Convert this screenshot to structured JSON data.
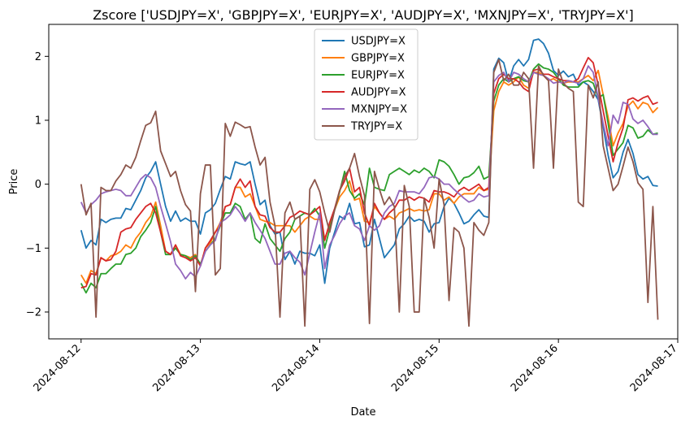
{
  "chart_data": {
    "type": "line",
    "title": "Zscore ['USDJPY=X', 'GBPJPY=X', 'EURJPY=X', 'AUDJPY=X', 'MXNJPY=X', 'TRYJPY=X']",
    "xlabel": "Date",
    "ylabel": "Price",
    "xlim": [
      "2024-08-11T17:30",
      "2024-08-17T00:00"
    ],
    "ylim": [
      -2.42,
      2.5
    ],
    "yticks": [
      -2,
      -1,
      0,
      1,
      2
    ],
    "xticks": [
      "2024-08-12",
      "2024-08-13",
      "2024-08-14",
      "2024-08-15",
      "2024-08-16",
      "2024-08-17"
    ],
    "x_start": "2024-08-12T00:00",
    "x_step_hours": 1,
    "legend_position": "upper center",
    "grid": false,
    "series": [
      {
        "name": "USDJPY=X",
        "color": "#1f77b4",
        "values": [
          -0.72,
          -1.0,
          -0.88,
          -0.95,
          -0.55,
          -0.6,
          -0.55,
          -0.53,
          -0.53,
          -0.38,
          -0.4,
          -0.25,
          -0.1,
          0.1,
          0.2,
          0.35,
          0.0,
          -0.35,
          -0.58,
          -0.42,
          -0.58,
          -0.53,
          -0.58,
          -0.58,
          -0.78,
          -0.45,
          -0.4,
          -0.3,
          -0.08,
          0.12,
          0.08,
          0.35,
          0.32,
          0.3,
          0.35,
          0.0,
          -0.32,
          -0.25,
          -0.65,
          -0.78,
          -0.75,
          -1.18,
          -1.05,
          -1.25,
          -1.05,
          -1.08,
          -1.08,
          -1.12,
          -0.95,
          -1.55,
          -1.0,
          -0.75,
          -0.5,
          -0.55,
          -0.3,
          -0.62,
          -0.6,
          -0.98,
          -0.95,
          -0.55,
          -0.85,
          -1.15,
          -1.05,
          -0.95,
          -0.7,
          -0.62,
          -0.5,
          -0.58,
          -0.55,
          -0.58,
          -0.75,
          -0.62,
          -0.6,
          -0.35,
          -0.22,
          -0.3,
          -0.45,
          -0.62,
          -0.58,
          -0.48,
          -0.4,
          -0.5,
          -0.52,
          1.8,
          1.97,
          1.9,
          1.6,
          1.85,
          1.95,
          1.85,
          1.95,
          2.25,
          2.27,
          2.2,
          2.05,
          1.78,
          1.7,
          1.77,
          1.68,
          1.72,
          1.55,
          1.6,
          1.55,
          1.45,
          1.32,
          0.9,
          0.45,
          0.1,
          0.2,
          0.5,
          0.7,
          0.48,
          0.15,
          0.08,
          0.12,
          -0.02,
          -0.03
        ]
      },
      {
        "name": "GBPJPY=X",
        "color": "#ff7f0e",
        "values": [
          -1.42,
          -1.55,
          -1.35,
          -1.4,
          -1.15,
          -1.2,
          -1.12,
          -1.1,
          -1.05,
          -0.95,
          -1.0,
          -0.85,
          -0.75,
          -0.6,
          -0.5,
          -0.28,
          -0.65,
          -1.05,
          -1.1,
          -0.95,
          -1.1,
          -1.12,
          -1.15,
          -1.1,
          -1.28,
          -1.0,
          -0.92,
          -0.75,
          -0.6,
          -0.35,
          -0.32,
          -0.05,
          -0.05,
          -0.2,
          -0.15,
          -0.35,
          -0.55,
          -0.58,
          -0.6,
          -0.65,
          -0.65,
          -0.65,
          -0.65,
          -0.75,
          -0.65,
          -0.55,
          -0.5,
          -0.55,
          -0.55,
          -0.85,
          -0.65,
          -0.4,
          -0.2,
          -0.1,
          0.05,
          -0.25,
          -0.22,
          -0.58,
          -0.6,
          -0.35,
          -0.45,
          -0.55,
          -0.5,
          -0.55,
          -0.45,
          -0.42,
          -0.38,
          -0.42,
          -0.4,
          -0.42,
          -0.4,
          -0.15,
          -0.15,
          -0.25,
          -0.2,
          -0.3,
          -0.2,
          -0.15,
          -0.15,
          -0.15,
          -0.05,
          -0.1,
          -0.08,
          1.15,
          1.45,
          1.6,
          1.55,
          1.6,
          1.68,
          1.55,
          1.5,
          1.75,
          1.75,
          1.7,
          1.62,
          1.65,
          1.6,
          1.58,
          1.6,
          1.6,
          1.6,
          1.65,
          1.7,
          1.62,
          1.78,
          1.4,
          1.05,
          0.6,
          0.8,
          0.95,
          1.22,
          1.3,
          1.18,
          1.28,
          1.25,
          1.12,
          1.2
        ]
      },
      {
        "name": "EURJPY=X",
        "color": "#2ca02c",
        "values": [
          -1.55,
          -1.7,
          -1.55,
          -1.62,
          -1.4,
          -1.4,
          -1.32,
          -1.25,
          -1.25,
          -1.1,
          -1.08,
          -1.0,
          -0.82,
          -0.72,
          -0.6,
          -0.35,
          -0.75,
          -1.1,
          -1.1,
          -1.0,
          -1.1,
          -1.12,
          -1.18,
          -1.12,
          -1.25,
          -1.05,
          -0.95,
          -0.85,
          -0.65,
          -0.45,
          -0.45,
          -0.3,
          -0.35,
          -0.55,
          -0.45,
          -0.85,
          -0.92,
          -0.62,
          -0.85,
          -0.95,
          -1.05,
          -0.85,
          -0.75,
          -0.55,
          -0.5,
          -0.45,
          -0.48,
          -0.38,
          -0.5,
          -1.0,
          -0.7,
          -0.4,
          -0.12,
          0.2,
          -0.1,
          -0.22,
          -0.15,
          -0.32,
          0.25,
          -0.05,
          -0.08,
          -0.1,
          0.15,
          0.2,
          0.25,
          0.2,
          0.15,
          0.22,
          0.18,
          0.25,
          0.2,
          0.1,
          0.38,
          0.35,
          0.28,
          0.15,
          0.0,
          0.1,
          0.12,
          0.18,
          0.28,
          0.08,
          0.12,
          1.3,
          1.55,
          1.65,
          1.6,
          1.65,
          1.68,
          1.62,
          1.6,
          1.8,
          1.88,
          1.82,
          1.8,
          1.75,
          1.65,
          1.55,
          1.52,
          1.52,
          1.52,
          1.6,
          1.62,
          1.58,
          1.35,
          1.4,
          0.95,
          0.45,
          0.55,
          0.65,
          0.92,
          0.88,
          0.72,
          0.75,
          0.85,
          0.78,
          0.8
        ]
      },
      {
        "name": "AUDJPY=X",
        "color": "#d62728",
        "values": [
          -1.62,
          -1.6,
          -1.4,
          -1.42,
          -1.15,
          -1.2,
          -1.18,
          -1.05,
          -0.75,
          -0.7,
          -0.68,
          -0.55,
          -0.45,
          -0.35,
          -0.3,
          -0.45,
          -0.75,
          -1.05,
          -1.1,
          -0.95,
          -1.12,
          -1.15,
          -1.2,
          -1.15,
          -1.28,
          -1.0,
          -0.88,
          -0.75,
          -0.65,
          -0.35,
          -0.32,
          -0.05,
          0.08,
          -0.05,
          0.05,
          -0.35,
          -0.48,
          -0.5,
          -0.68,
          -0.75,
          -0.75,
          -0.65,
          -0.52,
          -0.48,
          -0.42,
          -0.45,
          -0.48,
          -0.42,
          -0.35,
          -0.88,
          -0.6,
          -0.38,
          -0.1,
          0.05,
          0.25,
          -0.12,
          -0.05,
          -0.45,
          -0.65,
          -0.3,
          -0.45,
          -0.55,
          -0.45,
          -0.38,
          -0.25,
          -0.25,
          -0.2,
          -0.25,
          -0.2,
          -0.22,
          -0.28,
          -0.1,
          -0.12,
          -0.12,
          -0.15,
          -0.2,
          -0.1,
          -0.05,
          -0.1,
          -0.05,
          0.0,
          -0.1,
          -0.05,
          1.42,
          1.65,
          1.72,
          1.65,
          1.65,
          1.6,
          1.5,
          1.45,
          1.78,
          1.8,
          1.72,
          1.72,
          1.68,
          1.65,
          1.62,
          1.62,
          1.6,
          1.65,
          1.82,
          1.98,
          1.9,
          1.55,
          1.15,
          0.75,
          0.35,
          0.65,
          0.88,
          1.32,
          1.35,
          1.3,
          1.35,
          1.38,
          1.25,
          1.28
        ]
      },
      {
        "name": "MXNJPY=X",
        "color": "#9467bd",
        "values": [
          -0.28,
          -0.45,
          -0.32,
          -0.25,
          -0.15,
          -0.12,
          -0.1,
          -0.08,
          -0.1,
          -0.18,
          -0.18,
          -0.05,
          0.08,
          0.15,
          0.1,
          -0.05,
          -0.35,
          -0.62,
          -0.9,
          -1.25,
          -1.35,
          -1.48,
          -1.38,
          -1.45,
          -1.28,
          -1.05,
          -0.95,
          -0.88,
          -0.6,
          -0.55,
          -0.48,
          -0.35,
          -0.45,
          -0.58,
          -0.45,
          -0.6,
          -0.72,
          -0.85,
          -1.05,
          -1.25,
          -1.25,
          -1.08,
          -1.05,
          -1.15,
          -1.22,
          -1.42,
          -1.08,
          -0.75,
          -0.45,
          -1.32,
          -0.95,
          -0.8,
          -0.62,
          -0.5,
          -0.45,
          -0.65,
          -0.7,
          -0.88,
          -0.65,
          -0.72,
          -0.65,
          -0.45,
          -0.35,
          -0.3,
          -0.1,
          -0.12,
          -0.12,
          -0.12,
          -0.15,
          -0.05,
          0.1,
          0.12,
          0.08,
          0.0,
          0.0,
          -0.08,
          -0.15,
          -0.22,
          -0.28,
          -0.25,
          -0.15,
          -0.2,
          -0.18,
          1.6,
          1.7,
          1.75,
          1.6,
          1.75,
          1.72,
          1.65,
          1.6,
          1.75,
          1.72,
          1.7,
          1.65,
          1.58,
          1.6,
          1.58,
          1.62,
          1.6,
          1.58,
          1.65,
          1.85,
          1.75,
          1.35,
          0.95,
          0.6,
          1.08,
          0.95,
          1.28,
          1.25,
          1.02,
          0.95,
          1.0,
          0.9,
          0.78,
          0.78
        ]
      },
      {
        "name": "TRYJPY=X",
        "color": "#8c564b",
        "values": [
          0.0,
          -0.48,
          -0.3,
          -2.08,
          -0.05,
          -0.1,
          -0.1,
          0.05,
          0.15,
          0.3,
          0.25,
          0.42,
          0.68,
          0.92,
          0.96,
          1.14,
          0.52,
          0.32,
          0.12,
          0.2,
          -0.1,
          -0.32,
          -0.42,
          -1.68,
          -0.15,
          0.3,
          0.3,
          -1.42,
          -1.32,
          0.95,
          0.75,
          0.97,
          0.93,
          0.88,
          0.9,
          0.58,
          0.3,
          0.42,
          -0.28,
          -0.65,
          -2.08,
          -0.45,
          -0.28,
          -0.55,
          -0.5,
          -2.22,
          -0.08,
          0.07,
          -0.12,
          -0.45,
          -0.75,
          -0.4,
          -0.1,
          0.12,
          0.25,
          0.48,
          0.12,
          -0.18,
          -2.18,
          0.2,
          -0.08,
          -0.32,
          -0.2,
          -0.35,
          -2.0,
          -0.02,
          -0.35,
          -2.0,
          -2.0,
          -0.22,
          -0.52,
          -1.0,
          0.08,
          -0.32,
          -1.82,
          -0.68,
          -0.75,
          -1.0,
          -2.22,
          -0.6,
          -0.72,
          -0.8,
          -0.6,
          1.75,
          1.95,
          1.62,
          1.72,
          1.55,
          1.55,
          1.75,
          1.65,
          0.25,
          1.85,
          1.7,
          1.62,
          0.25,
          1.8,
          1.58,
          1.5,
          1.45,
          -0.28,
          -0.35,
          1.55,
          1.35,
          1.6,
          0.6,
          0.25,
          -0.1,
          0.0,
          0.28,
          0.58,
          0.35,
          0.02,
          -0.08,
          -1.85,
          -0.35,
          -2.12
        ]
      }
    ]
  }
}
